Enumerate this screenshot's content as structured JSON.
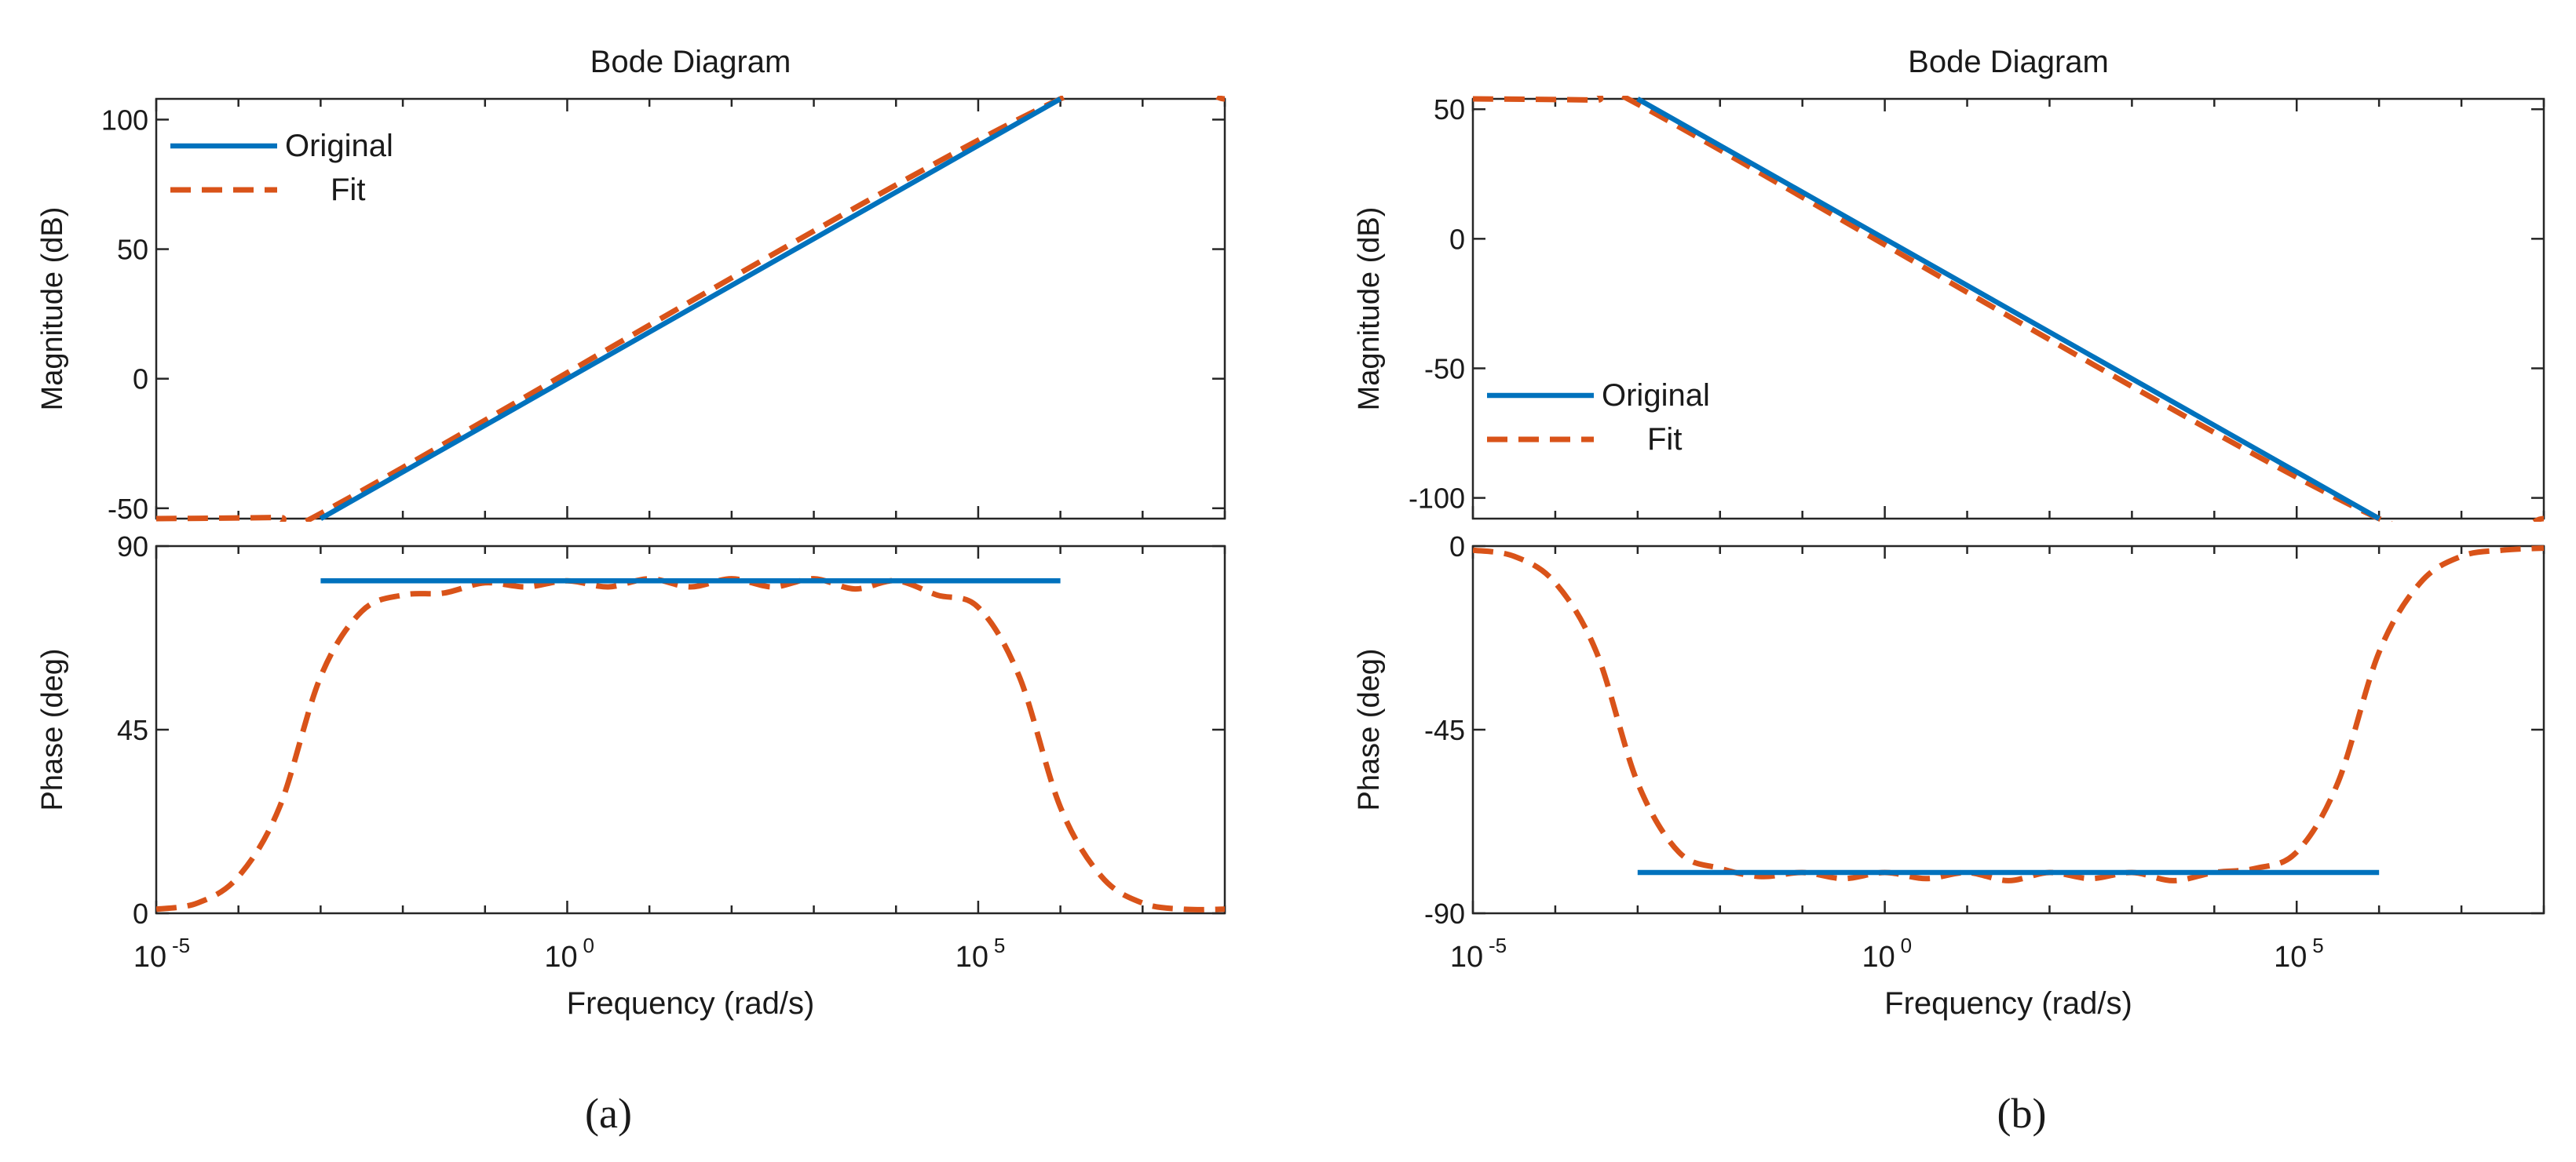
{
  "colors": {
    "original": "#0072BD",
    "fit": "#D95319",
    "axis": "#262626",
    "background": "#FFFFFF"
  },
  "chart_data": [
    {
      "label": "(a)",
      "title": "Bode Diagram",
      "xlabel": "Frequency  (rad/s)",
      "xscale": "log10",
      "xlim_exp": [
        -5,
        8
      ],
      "xticks": [
        {
          "base": "10",
          "exp": "-5",
          "value_exp": -5
        },
        {
          "base": "10",
          "exp": "0",
          "value_exp": 0
        },
        {
          "base": "10",
          "exp": "5",
          "value_exp": 5
        }
      ],
      "magnitude": {
        "type": "line",
        "ylabel": "Magnitude (dB)",
        "ylim": [
          -54,
          108
        ],
        "yticks": [
          -50,
          0,
          50,
          100
        ],
        "ytick_labels": [
          "-50",
          "0",
          "50",
          "100"
        ],
        "legend": {
          "placement": "top-left",
          "entries": [
            "Original",
            "Fit"
          ]
        },
        "series": [
          {
            "name": "Original",
            "style": "solid",
            "points": [
              [
                -3,
                -54
              ],
              [
                6,
                108
              ]
            ]
          },
          {
            "name": "Fit",
            "style": "dashed",
            "points": [
              [
                -5,
                -54
              ],
              [
                -3.5,
                -53.5
              ],
              [
                -3,
                -52
              ],
              [
                6,
                108
              ],
              [
                8,
                108
              ]
            ]
          }
        ]
      },
      "phase": {
        "type": "line",
        "ylabel": "Phase (deg)",
        "ylim": [
          0,
          90
        ],
        "yticks": [
          0,
          45,
          90
        ],
        "ytick_labels": [
          "0",
          "45",
          "90"
        ],
        "series": [
          {
            "name": "Original",
            "style": "solid",
            "points": [
              [
                -3,
                81.5
              ],
              [
                6,
                81.5
              ]
            ]
          },
          {
            "name": "Fit",
            "style": "dashed",
            "points": [
              [
                -5,
                1
              ],
              [
                -4.5,
                2.5
              ],
              [
                -4,
                9
              ],
              [
                -3.5,
                26
              ],
              [
                -3,
                58
              ],
              [
                -2.5,
                74
              ],
              [
                -2,
                78
              ],
              [
                -1.5,
                78.5
              ],
              [
                -1,
                81
              ],
              [
                -0.5,
                80
              ],
              [
                0,
                81.5
              ],
              [
                0.5,
                80
              ],
              [
                1,
                82
              ],
              [
                1.5,
                80
              ],
              [
                2,
                82
              ],
              [
                2.5,
                80
              ],
              [
                3,
                82
              ],
              [
                3.5,
                79.5
              ],
              [
                4,
                81.5
              ],
              [
                4.5,
                78
              ],
              [
                5,
                75
              ],
              [
                5.5,
                58
              ],
              [
                6,
                26
              ],
              [
                6.5,
                9
              ],
              [
                7,
                2.5
              ],
              [
                7.5,
                1
              ],
              [
                8,
                1
              ]
            ]
          }
        ]
      }
    },
    {
      "label": "(b)",
      "title": "Bode Diagram",
      "xlabel": "Frequency  (rad/s)",
      "xscale": "log10",
      "xlim_exp": [
        -5,
        8
      ],
      "xticks": [
        {
          "base": "10",
          "exp": "-5",
          "value_exp": -5
        },
        {
          "base": "10",
          "exp": "0",
          "value_exp": 0
        },
        {
          "base": "10",
          "exp": "5",
          "value_exp": 5
        }
      ],
      "magnitude": {
        "type": "line",
        "ylabel": "Magnitude (dB)",
        "ylim": [
          -108,
          54
        ],
        "yticks": [
          -100,
          -50,
          0,
          50
        ],
        "ytick_labels": [
          "-100",
          "-50",
          "0",
          "50"
        ],
        "legend": {
          "placement": "middle-left",
          "entries": [
            "Original",
            "Fit"
          ]
        },
        "series": [
          {
            "name": "Original",
            "style": "solid",
            "points": [
              [
                -3,
                54
              ],
              [
                6,
                -108
              ]
            ]
          },
          {
            "name": "Fit",
            "style": "dashed",
            "points": [
              [
                -5,
                54
              ],
              [
                -3.5,
                53.5
              ],
              [
                -3,
                52
              ],
              [
                6,
                -108
              ],
              [
                8,
                -108
              ]
            ]
          }
        ]
      },
      "phase": {
        "type": "line",
        "ylabel": "Phase (deg)",
        "ylim": [
          -90,
          0
        ],
        "yticks": [
          -90,
          -45,
          0
        ],
        "ytick_labels": [
          "-90",
          "-45",
          "0"
        ],
        "series": [
          {
            "name": "Original",
            "style": "solid",
            "points": [
              [
                -3,
                -80
              ],
              [
                6,
                -80
              ]
            ]
          },
          {
            "name": "Fit",
            "style": "dashed",
            "points": [
              [
                -5,
                -1
              ],
              [
                -4.5,
                -2.5
              ],
              [
                -4,
                -9
              ],
              [
                -3.5,
                -26
              ],
              [
                -3,
                -58
              ],
              [
                -2.5,
                -75
              ],
              [
                -2,
                -79
              ],
              [
                -1.5,
                -81
              ],
              [
                -1,
                -80
              ],
              [
                -0.5,
                -81.5
              ],
              [
                0,
                -80
              ],
              [
                0.5,
                -81.5
              ],
              [
                1,
                -80
              ],
              [
                1.5,
                -82
              ],
              [
                2,
                -80
              ],
              [
                2.5,
                -81.5
              ],
              [
                3,
                -80
              ],
              [
                3.5,
                -82
              ],
              [
                4,
                -80
              ],
              [
                4.5,
                -79
              ],
              [
                5,
                -75
              ],
              [
                5.5,
                -58
              ],
              [
                6,
                -26
              ],
              [
                6.5,
                -9
              ],
              [
                7,
                -2.5
              ],
              [
                7.5,
                -1
              ],
              [
                8,
                -0.5
              ]
            ]
          }
        ]
      }
    }
  ]
}
